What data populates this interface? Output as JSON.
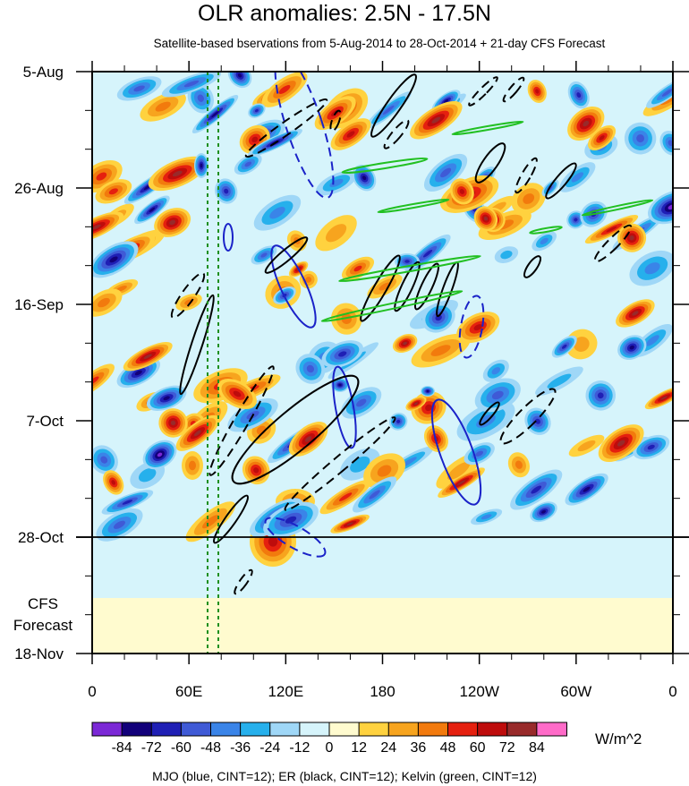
{
  "chart_data": {
    "type": "heatmap",
    "title": "OLR anomalies: 2.5N - 17.5N",
    "subtitle": "Satellite-based bservations from 5-Aug-2014 to 28-Oct-2014 + 21-day CFS Forecast",
    "x_ticks": [
      "0",
      "60E",
      "120E",
      "180",
      "120W",
      "60W",
      "0"
    ],
    "y_ticks": [
      "5-Aug",
      "26-Aug",
      "16-Sep",
      "7-Oct",
      "28-Oct",
      "18-Nov"
    ],
    "forecast_label": [
      "CFS",
      "Forecast"
    ],
    "colorbar": {
      "levels": [
        "-84",
        "-72",
        "-60",
        "-48",
        "-36",
        "-24",
        "-12",
        "0",
        "12",
        "24",
        "36",
        "48",
        "60",
        "72",
        "84"
      ],
      "colors": [
        "#7b28d6",
        "#12007a",
        "#1f1fb5",
        "#3f5ad6",
        "#3a84e8",
        "#26b0ec",
        "#9fd7f7",
        "#d6f4fb",
        "#fffbcf",
        "#ffd23f",
        "#f7a41e",
        "#f27a0d",
        "#e5200f",
        "#be0c0c",
        "#982a2a",
        "#ff6bc8"
      ],
      "units": "W/m^2"
    },
    "contours_legend": "MJO (blue, CINT=12); ER (black, CINT=12); Kelvin (green, CINT=12)",
    "overlay_colors": {
      "mjo": "#1a22c8",
      "er": "#000000",
      "kelvin": "#22c022",
      "reference_lines": "#1f8f1f"
    },
    "observation_end": "28-Oct",
    "grid": false
  }
}
